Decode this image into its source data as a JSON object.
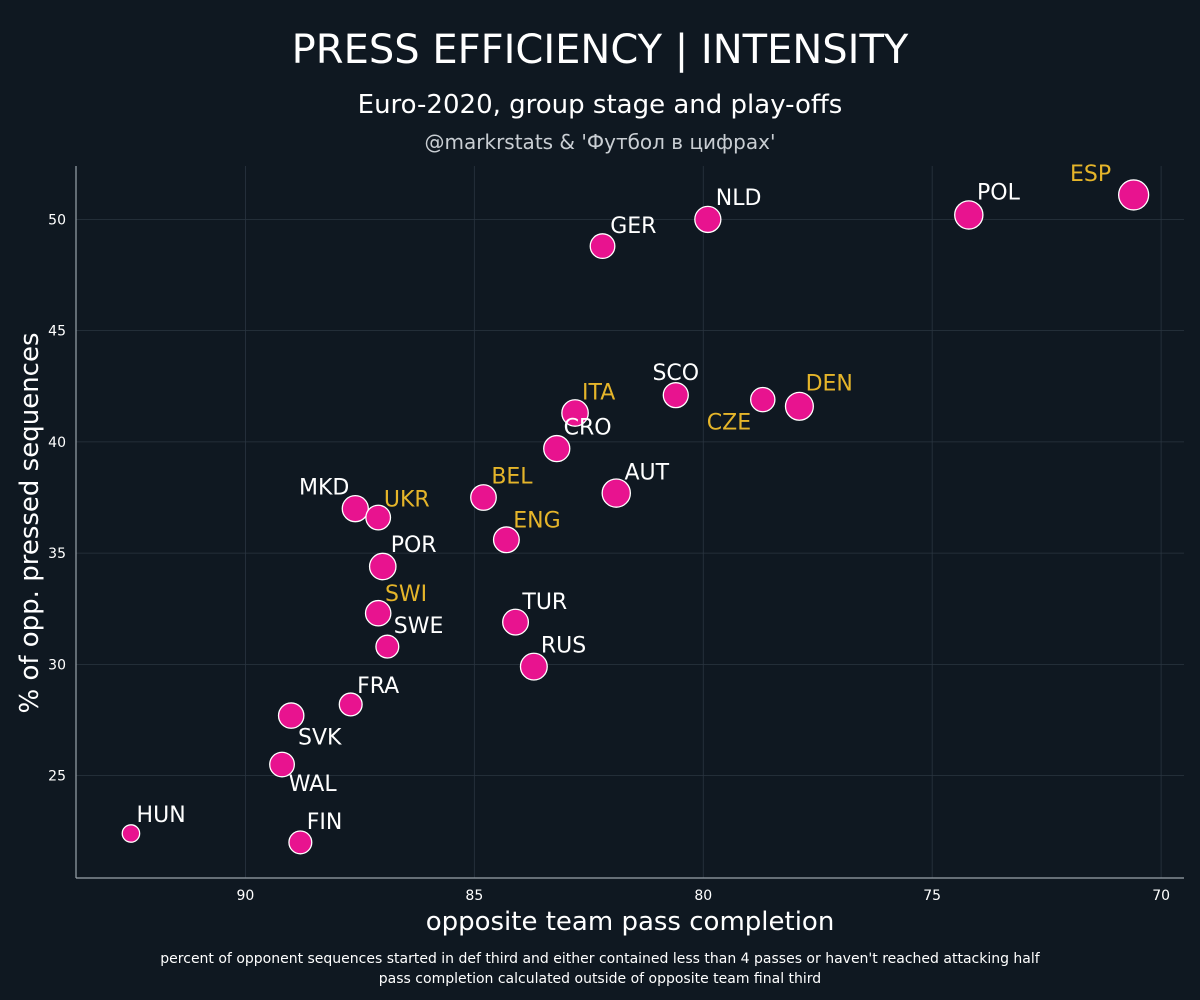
{
  "colors": {
    "background": "#0f1821",
    "marker_fill": "#e8138f",
    "marker_stroke": "#ffffff",
    "label_default": "#ffffff",
    "label_highlight": "#e5b52a",
    "grid": "#2a3540"
  },
  "chart_data": {
    "type": "scatter",
    "title": "PRESS EFFICIENCY | INTENSITY",
    "subtitle": "Euro-2020, group stage and play-offs",
    "credit": "@markrstats & 'Футбол в цифрах'",
    "xlabel": "opposite team pass completion",
    "ylabel": "% of opp. pressed sequences",
    "x_reversed": true,
    "xlim": [
      93.7,
      69.5
    ],
    "ylim": [
      20.4,
      52.4
    ],
    "xticks": [
      90,
      85,
      80,
      75,
      70
    ],
    "yticks": [
      25,
      30,
      35,
      40,
      45,
      50
    ],
    "grid": true,
    "footnotes": [
      "percent of opponent sequences started in def third and either contained less than 4 passes or haven't reached attacking half",
      "pass completion calculated outside of opposite team final third"
    ],
    "points": [
      {
        "label": "ESP",
        "x": 70.6,
        "y": 51.1,
        "highlight": true,
        "size": 1.0
      },
      {
        "label": "POL",
        "x": 74.2,
        "y": 50.2,
        "highlight": false,
        "size": 0.9
      },
      {
        "label": "NLD",
        "x": 79.9,
        "y": 50.0,
        "highlight": false,
        "size": 0.78
      },
      {
        "label": "GER",
        "x": 82.2,
        "y": 48.8,
        "highlight": false,
        "size": 0.7
      },
      {
        "label": "SCO",
        "x": 80.6,
        "y": 42.1,
        "highlight": false,
        "size": 0.72
      },
      {
        "label": "CZE",
        "x": 78.7,
        "y": 41.9,
        "highlight": true,
        "size": 0.68
      },
      {
        "label": "DEN",
        "x": 77.9,
        "y": 41.6,
        "highlight": true,
        "size": 0.88
      },
      {
        "label": "ITA",
        "x": 82.8,
        "y": 41.3,
        "highlight": true,
        "size": 0.8
      },
      {
        "label": "CRO",
        "x": 83.2,
        "y": 39.7,
        "highlight": false,
        "size": 0.78
      },
      {
        "label": "AUT",
        "x": 81.9,
        "y": 37.7,
        "highlight": false,
        "size": 0.9
      },
      {
        "label": "BEL",
        "x": 84.8,
        "y": 37.5,
        "highlight": true,
        "size": 0.75
      },
      {
        "label": "MKD",
        "x": 87.6,
        "y": 37.0,
        "highlight": false,
        "size": 0.78
      },
      {
        "label": "UKR",
        "x": 87.1,
        "y": 36.6,
        "highlight": true,
        "size": 0.7
      },
      {
        "label": "ENG",
        "x": 84.3,
        "y": 35.6,
        "highlight": true,
        "size": 0.76
      },
      {
        "label": "POR",
        "x": 87.0,
        "y": 34.4,
        "highlight": false,
        "size": 0.8
      },
      {
        "label": "SWI",
        "x": 87.1,
        "y": 32.3,
        "highlight": true,
        "size": 0.74
      },
      {
        "label": "TUR",
        "x": 84.1,
        "y": 31.9,
        "highlight": false,
        "size": 0.76
      },
      {
        "label": "SWE",
        "x": 86.9,
        "y": 30.8,
        "highlight": false,
        "size": 0.6
      },
      {
        "label": "RUS",
        "x": 83.7,
        "y": 29.9,
        "highlight": false,
        "size": 0.82
      },
      {
        "label": "FRA",
        "x": 87.7,
        "y": 28.2,
        "highlight": false,
        "size": 0.6
      },
      {
        "label": "SVK",
        "x": 89.0,
        "y": 27.7,
        "highlight": false,
        "size": 0.74
      },
      {
        "label": "WAL",
        "x": 89.2,
        "y": 25.5,
        "highlight": false,
        "size": 0.7
      },
      {
        "label": "HUN",
        "x": 92.5,
        "y": 22.4,
        "highlight": false,
        "size": 0.3
      },
      {
        "label": "FIN",
        "x": 88.8,
        "y": 22.0,
        "highlight": false,
        "size": 0.6
      }
    ]
  }
}
